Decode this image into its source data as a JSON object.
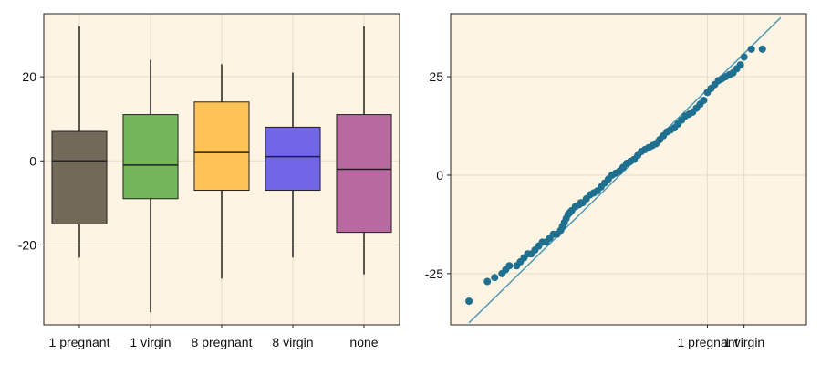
{
  "colors": {
    "background": "#fdf4e3",
    "grid": "#e8dcc6",
    "axis": "#222222",
    "qq_points": "#1f6f91",
    "qq_line": "#4f9ab5"
  },
  "chart_data": [
    {
      "type": "box",
      "title": "",
      "xlabel": "",
      "ylabel": "",
      "grid": true,
      "ylim": [
        -39,
        35
      ],
      "y_ticks": [
        20,
        0,
        -20
      ],
      "y_tick_labels": [
        "20",
        "0",
        "-20"
      ],
      "categories": [
        "1 pregnant",
        "1 virgin",
        "8 pregnant",
        "8 virgin",
        "none"
      ],
      "boxes": [
        {
          "category": "1 pregnant",
          "color": "#6b6150",
          "whisker_low": -23,
          "q1": -15,
          "median": 0,
          "q3": 7,
          "whisker_high": 32
        },
        {
          "category": "1 virgin",
          "color": "#6db352",
          "whisker_low": -36,
          "q1": -9,
          "median": -1,
          "q3": 11,
          "whisker_high": 24
        },
        {
          "category": "8 pregnant",
          "color": "#ffc04d",
          "whisker_low": -28,
          "q1": -7,
          "median": 2,
          "q3": 14,
          "whisker_high": 23
        },
        {
          "category": "8 virgin",
          "color": "#6a5ee8",
          "whisker_low": -23,
          "q1": -7,
          "median": 1,
          "q3": 8,
          "whisker_high": 21
        },
        {
          "category": "none",
          "color": "#b2629c",
          "whisker_low": -27,
          "q1": -17,
          "median": -2,
          "q3": 11,
          "whisker_high": 32
        }
      ]
    },
    {
      "type": "scatter",
      "title": "",
      "xlabel": "",
      "ylabel": "",
      "grid": true,
      "xlim": [
        -50,
        47
      ],
      "ylim": [
        -38,
        41
      ],
      "y_ticks": [
        25,
        0,
        -25
      ],
      "y_tick_labels": [
        "25",
        "0",
        "-25"
      ],
      "x_tick_labels": [
        "1 pregnant",
        "1 virgin"
      ],
      "x_tick_values": [
        20,
        30
      ],
      "reference_line": {
        "x": [
          -45,
          40
        ],
        "y": [
          -37.5,
          40
        ]
      },
      "points_x": [
        -45,
        -40,
        -38,
        -36,
        -35,
        -34,
        -32,
        -31,
        -30,
        -29,
        -28,
        -27,
        -26,
        -25,
        -24,
        -23,
        -22,
        -21,
        -20,
        -19.5,
        -19,
        -18.5,
        -18,
        -17.5,
        -17,
        -16,
        -15,
        -14.5,
        -14,
        -13,
        -12,
        -11,
        -10,
        -9,
        -8,
        -7,
        -6,
        -5,
        -4,
        -3,
        -2,
        -1,
        0,
        1,
        2,
        3,
        4,
        5,
        6,
        7,
        8,
        9,
        10,
        11,
        12,
        13,
        14,
        15,
        16,
        17,
        18,
        19,
        20,
        21,
        22,
        23,
        24,
        25,
        26,
        27,
        28,
        29,
        30,
        32,
        35
      ],
      "points_y": [
        -32,
        -27,
        -26,
        -25,
        -24,
        -23,
        -23,
        -22,
        -21,
        -20,
        -20,
        -19,
        -18,
        -17,
        -17,
        -16,
        -15,
        -15,
        -14,
        -13,
        -12,
        -11,
        -10,
        -9.5,
        -9,
        -8,
        -7.5,
        -7,
        -7,
        -6,
        -5,
        -4.5,
        -4,
        -3,
        -2,
        -1,
        0,
        0.5,
        1,
        2,
        3,
        3.5,
        4,
        5,
        6,
        6.5,
        7,
        7.5,
        8,
        9,
        10,
        11,
        11.5,
        12,
        13,
        14,
        15,
        15.5,
        16,
        17,
        18,
        19,
        21,
        22,
        23,
        24,
        24.5,
        25,
        25.5,
        26,
        27,
        28,
        30,
        32,
        32
      ]
    }
  ]
}
